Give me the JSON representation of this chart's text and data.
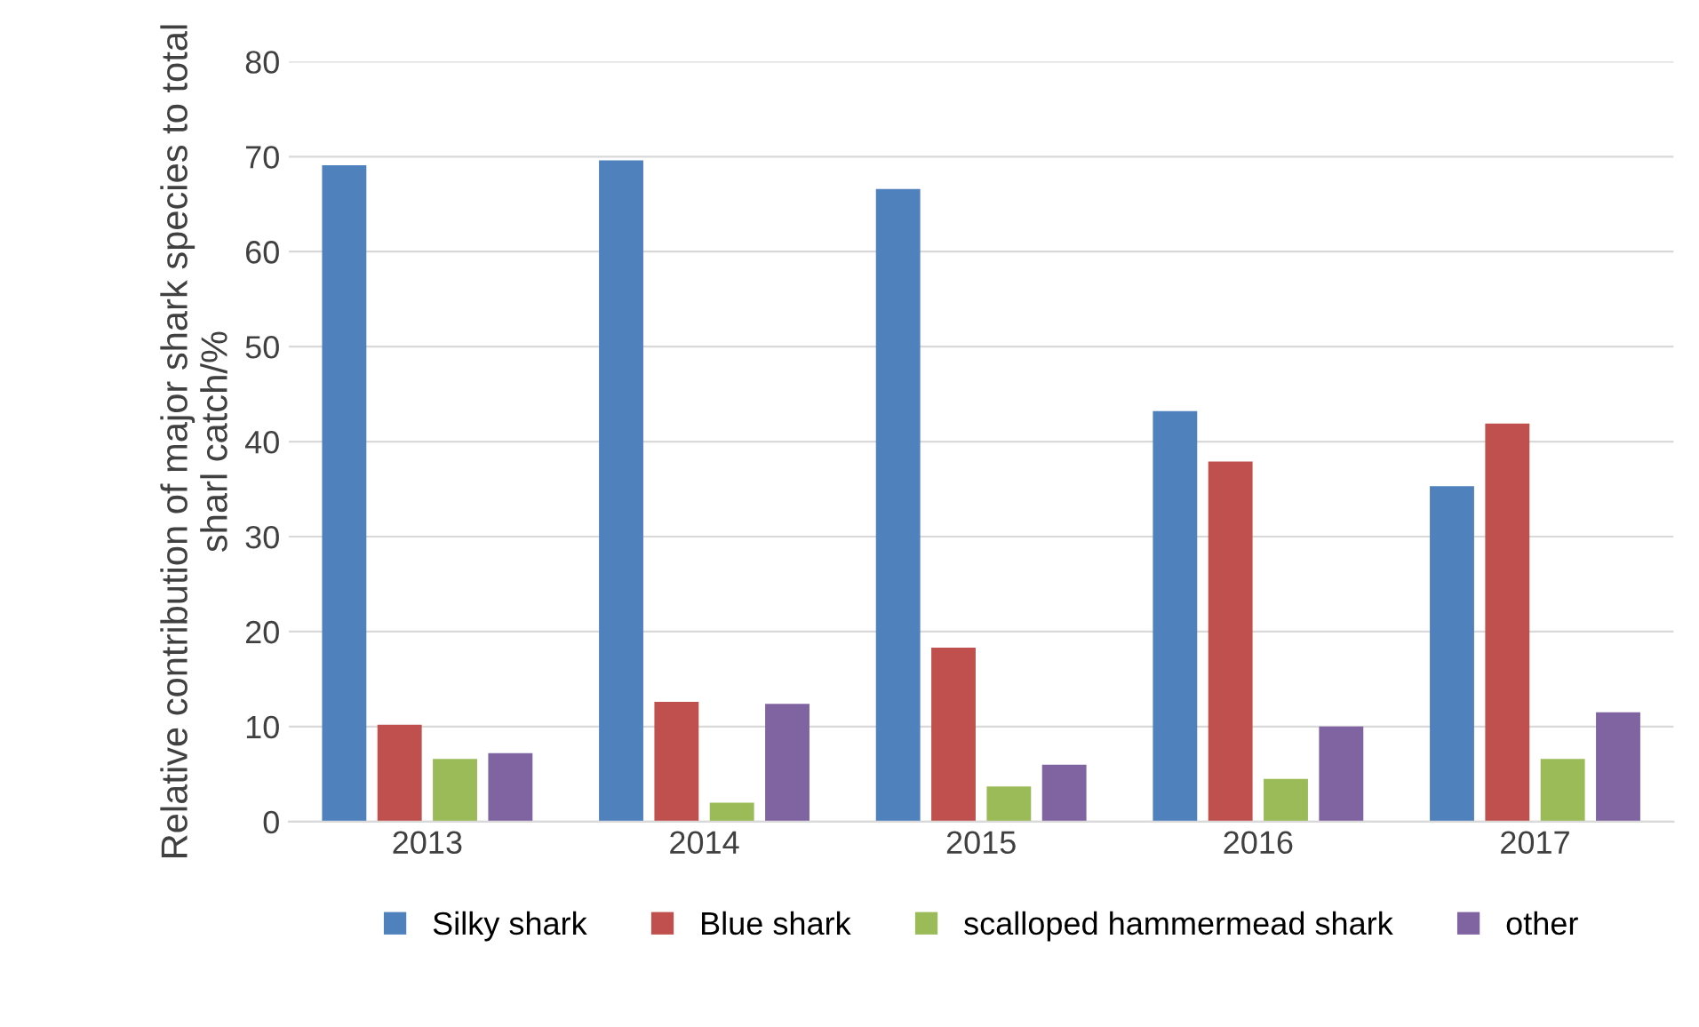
{
  "chart_data": {
    "type": "bar",
    "ylabel": "Relative contribution of major shark species to total sharl catch/%",
    "categories": [
      "2013",
      "2014",
      "2015",
      "2016",
      "2017"
    ],
    "series": [
      {
        "name": "Silky shark",
        "color": "#4f81bd",
        "values": [
          69.1,
          69.6,
          66.6,
          43.2,
          35.3
        ]
      },
      {
        "name": "Blue shark",
        "color": "#c0504d",
        "values": [
          10.2,
          12.6,
          18.3,
          37.9,
          41.9
        ]
      },
      {
        "name": "scalloped hammermead shark",
        "color": "#9bbb59",
        "values": [
          6.6,
          2.0,
          3.7,
          4.5,
          6.6
        ]
      },
      {
        "name": "other",
        "color": "#8064a2",
        "values": [
          7.2,
          12.4,
          6.0,
          10.0,
          11.5
        ]
      }
    ],
    "ylim": [
      0,
      80
    ],
    "yticks": [
      0,
      10,
      20,
      30,
      40,
      50,
      60,
      70,
      80
    ],
    "grid": "y",
    "legend": "bottom"
  }
}
